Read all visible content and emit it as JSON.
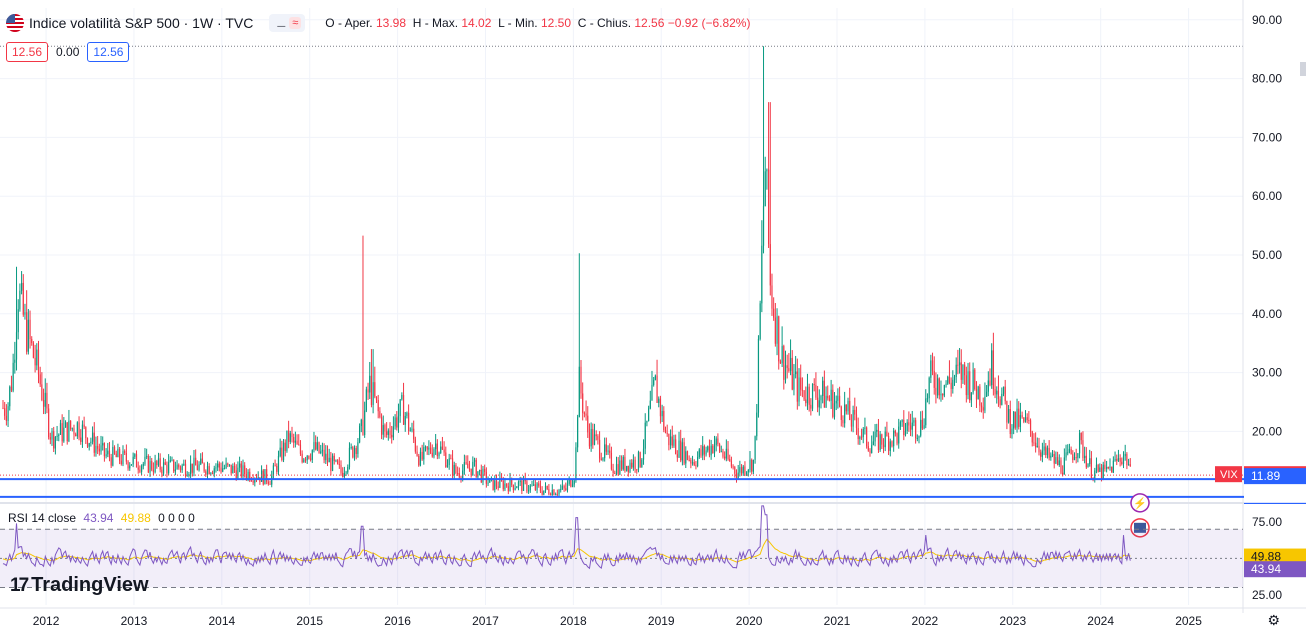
{
  "header": {
    "title": "Indice volatilità S&P 500 · 1W · TVC",
    "indicator_a": "⚊",
    "indicator_b": "≈",
    "open_label": "O - Aper.",
    "open": "13.98",
    "high_label": "H - Max.",
    "high": "14.02",
    "low_label": "L - Min.",
    "low": "12.50",
    "close_label": "C - Chius.",
    "close": "12.56",
    "change": "−0.92 (−6.82%)"
  },
  "badges": {
    "left": "12.56",
    "middle": "0.00",
    "right": "12.56"
  },
  "price_axis": {
    "labels": [
      "90.00",
      "80.00",
      "70.00",
      "60.00",
      "50.00",
      "40.00",
      "30.00",
      "20.00"
    ]
  },
  "price_tags": {
    "symbol": "VIX",
    "last": "12.56",
    "line1": "11.89",
    "line2": "8.88"
  },
  "rsi": {
    "label": "RSI 14 close",
    "value": "43.94",
    "ma_value": "49.88",
    "zeros": "0 0 0 0",
    "axis_labels": [
      "75.00",
      "25.00"
    ],
    "tag_ma": "49.88",
    "tag_value": "43.94"
  },
  "time_axis": {
    "labels": [
      "2012",
      "2013",
      "2014",
      "2015",
      "2016",
      "2017",
      "2018",
      "2019",
      "2020",
      "2021",
      "2022",
      "2023",
      "2024",
      "2025"
    ]
  },
  "logo": {
    "mark": "17",
    "text": "TradingView"
  },
  "colors": {
    "up": "#089981",
    "down": "#f23645",
    "rsi": "#7e57c2",
    "rsi_ma": "#f7c600",
    "hline": "#2962ff"
  },
  "icons": {
    "settings": "settings-icon",
    "alert": "lightning-icon",
    "flag": "us-flag-icon"
  },
  "chart_data": {
    "type": "candlestick",
    "title": "Indice volatilità S&P 500 · 1W · TVC",
    "ylim": [
      8,
      92
    ],
    "yticks": [
      20,
      30,
      40,
      50,
      60,
      70,
      80,
      90
    ],
    "x_range": [
      2011.55,
      2025.58
    ],
    "keypoints": [
      [
        2011.6,
        24
      ],
      [
        2011.66,
        30
      ],
      [
        2011.72,
        44
      ],
      [
        2011.8,
        38
      ],
      [
        2011.95,
        30
      ],
      [
        2012.1,
        19
      ],
      [
        2012.4,
        21
      ],
      [
        2012.7,
        16
      ],
      [
        2013.0,
        15
      ],
      [
        2013.3,
        14
      ],
      [
        2013.7,
        14
      ],
      [
        2014.0,
        14
      ],
      [
        2014.3,
        13
      ],
      [
        2014.6,
        12
      ],
      [
        2014.8,
        19
      ],
      [
        2014.95,
        16
      ],
      [
        2015.1,
        17
      ],
      [
        2015.4,
        13
      ],
      [
        2015.63,
        20
      ],
      [
        2015.72,
        28
      ],
      [
        2015.9,
        19
      ],
      [
        2016.1,
        24
      ],
      [
        2016.3,
        15
      ],
      [
        2016.48,
        18
      ],
      [
        2016.7,
        13
      ],
      [
        2016.9,
        14
      ],
      [
        2017.1,
        11
      ],
      [
        2017.4,
        11
      ],
      [
        2017.7,
        10
      ],
      [
        2017.95,
        10
      ],
      [
        2018.06,
        13
      ],
      [
        2018.1,
        29
      ],
      [
        2018.2,
        20
      ],
      [
        2018.5,
        14
      ],
      [
        2018.8,
        15
      ],
      [
        2018.97,
        28
      ],
      [
        2019.1,
        19
      ],
      [
        2019.4,
        15
      ],
      [
        2019.65,
        18
      ],
      [
        2019.9,
        13
      ],
      [
        2020.1,
        15
      ],
      [
        2020.16,
        38
      ],
      [
        2020.22,
        66
      ],
      [
        2020.28,
        45
      ],
      [
        2020.4,
        33
      ],
      [
        2020.6,
        27
      ],
      [
        2020.9,
        26
      ],
      [
        2021.1,
        24
      ],
      [
        2021.4,
        18
      ],
      [
        2021.7,
        19
      ],
      [
        2021.85,
        21
      ],
      [
        2022.0,
        21
      ],
      [
        2022.1,
        29
      ],
      [
        2022.3,
        28
      ],
      [
        2022.45,
        30
      ],
      [
        2022.7,
        26
      ],
      [
        2022.8,
        31
      ],
      [
        2023.0,
        22
      ],
      [
        2023.2,
        21
      ],
      [
        2023.4,
        16
      ],
      [
        2023.6,
        14
      ],
      [
        2023.8,
        18
      ],
      [
        2023.95,
        13
      ],
      [
        2024.1,
        13
      ],
      [
        2024.3,
        16
      ],
      [
        2024.35,
        15
      ],
      [
        2024.38,
        12.56
      ]
    ],
    "spikes": [
      [
        2011.71,
        48
      ],
      [
        2015.64,
        53.3
      ],
      [
        2018.1,
        50.3
      ],
      [
        2020.21,
        85.5
      ],
      [
        2020.27,
        76
      ],
      [
        2015.75,
        34
      ],
      [
        2020.28,
        68
      ]
    ],
    "hlines": [
      11.89,
      8.88
    ],
    "last": 12.56,
    "rsi": {
      "ylim": [
        18,
        88
      ],
      "levels": [
        30,
        50,
        70
      ],
      "series_name": "RSI 14 close",
      "last": 43.94,
      "ma_last": 49.88,
      "spikes": [
        [
          2011.7,
          74
        ],
        [
          2015.64,
          72
        ],
        [
          2018.08,
          78
        ],
        [
          2020.19,
          86
        ],
        [
          2020.23,
          80
        ],
        [
          2022.05,
          66
        ],
        [
          2024.3,
          66
        ]
      ]
    },
    "time_labels": [
      "2012",
      "2013",
      "2014",
      "2015",
      "2016",
      "2017",
      "2018",
      "2019",
      "2020",
      "2021",
      "2022",
      "2023",
      "2024",
      "2025"
    ]
  }
}
